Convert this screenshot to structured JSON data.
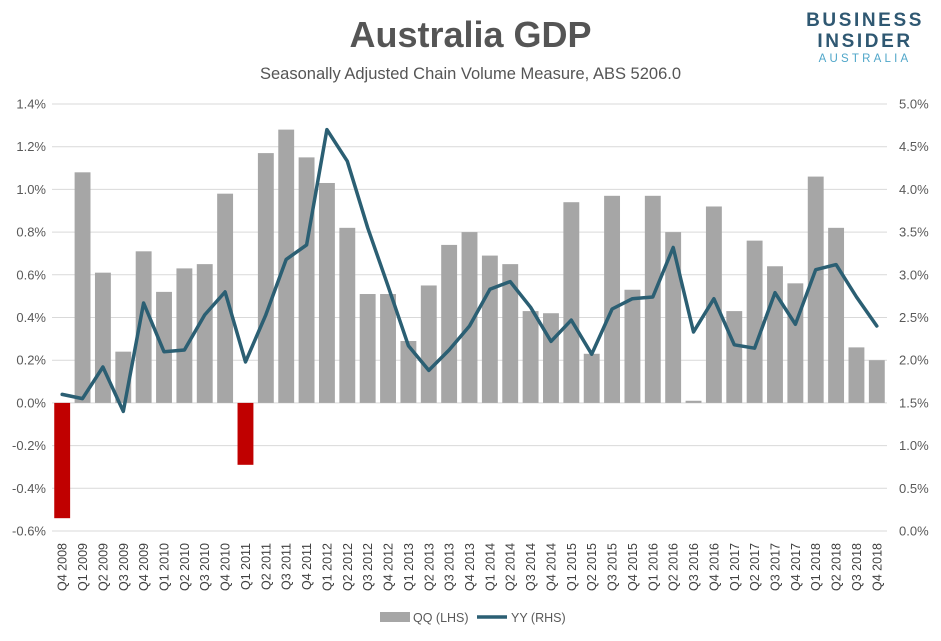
{
  "brand": {
    "line1": "BUSINESS",
    "line2": "INSIDER",
    "line3": "AUSTRALIA"
  },
  "chart_data": {
    "type": "bar",
    "title": "Australia GDP",
    "subtitle": "Seasonally Adjusted Chain Volume Measure, ABS 5206.0",
    "categories": [
      "Q4 2008",
      "Q1 2009",
      "Q2 2009",
      "Q3 2009",
      "Q4 2009",
      "Q1 2010",
      "Q2 2010",
      "Q3 2010",
      "Q4 2010",
      "Q1 2011",
      "Q2 2011",
      "Q3 2011",
      "Q4 2011",
      "Q1 2012",
      "Q2 2012",
      "Q3 2012",
      "Q4 2012",
      "Q1 2013",
      "Q2 2013",
      "Q3 2013",
      "Q4 2013",
      "Q1 2014",
      "Q2 2014",
      "Q3 2014",
      "Q4 2014",
      "Q1 2015",
      "Q2 2015",
      "Q3 2015",
      "Q4 2015",
      "Q1 2016",
      "Q2 2016",
      "Q3 2016",
      "Q4 2016",
      "Q1 2017",
      "Q2 2017",
      "Q3 2017",
      "Q4 2017",
      "Q1 2018",
      "Q2 2018",
      "Q3 2018",
      "Q4 2018"
    ],
    "series": [
      {
        "name": "QQ (LHS)",
        "type": "bar",
        "axis": "left",
        "color": "#a6a6a6",
        "negative_color": "#c00000",
        "values": [
          -0.54,
          1.08,
          0.61,
          0.24,
          0.71,
          0.52,
          0.63,
          0.65,
          0.98,
          -0.29,
          1.17,
          1.28,
          1.15,
          1.03,
          0.82,
          0.51,
          0.51,
          0.29,
          0.55,
          0.74,
          0.8,
          0.69,
          0.65,
          0.43,
          0.42,
          0.94,
          0.23,
          0.97,
          0.53,
          0.97,
          0.8,
          0.01,
          0.92,
          0.43,
          0.76,
          0.64,
          0.56,
          1.06,
          0.82,
          0.26,
          0.2
        ]
      },
      {
        "name": "YY (RHS)",
        "type": "line",
        "axis": "right",
        "color": "#2b5f73",
        "values": [
          1.6,
          1.55,
          1.92,
          1.4,
          2.67,
          2.1,
          2.12,
          2.53,
          2.8,
          1.98,
          2.53,
          3.18,
          3.35,
          4.7,
          4.33,
          3.55,
          2.87,
          2.17,
          1.88,
          2.12,
          2.4,
          2.83,
          2.92,
          2.62,
          2.22,
          2.47,
          2.07,
          2.6,
          2.72,
          2.74,
          3.32,
          2.33,
          2.72,
          2.18,
          2.14,
          2.79,
          2.42,
          3.06,
          3.12,
          2.74,
          2.4
        ]
      }
    ],
    "ylim_left": [
      -0.6,
      1.4
    ],
    "ylim_right": [
      0.0,
      5.0
    ],
    "yticks_left": [
      "1.4%",
      "1.2%",
      "1.0%",
      "0.8%",
      "0.6%",
      "0.4%",
      "0.2%",
      "0.0%",
      "-0.2%",
      "-0.4%",
      "-0.6%"
    ],
    "yticks_right": [
      "5.0%",
      "4.5%",
      "4.0%",
      "3.5%",
      "3.0%",
      "2.5%",
      "2.0%",
      "1.5%",
      "1.0%",
      "0.5%",
      "0.0%"
    ],
    "grid": true,
    "legend_position": "bottom"
  }
}
